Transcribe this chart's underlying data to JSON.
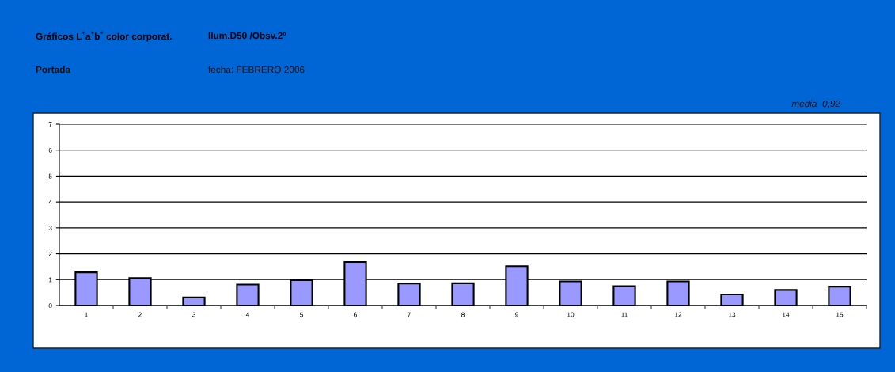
{
  "chart_data": {
    "type": "bar",
    "title": "Gráficos L$^{*}$a$^{*}$b$^{*}$ color corporat.",
    "subtitle": "Ilum.D50 /Obsv.2º",
    "annotations": [
      "Portada",
      "fecha: FEBRERO 2006",
      "media  0,92"
    ],
    "categories": [
      "1",
      "2",
      "3",
      "4",
      "5",
      "6",
      "7",
      "8",
      "9",
      "10",
      "11",
      "12",
      "13",
      "14",
      "15"
    ],
    "values": [
      1.28,
      1.06,
      0.31,
      0.81,
      0.98,
      1.68,
      0.85,
      0.86,
      1.52,
      0.93,
      0.75,
      0.93,
      0.43,
      0.6,
      0.73
    ],
    "color": "#9999ff",
    "ylim": [
      0,
      7
    ],
    "yticks": [
      0,
      1,
      2,
      3,
      4,
      5,
      6,
      7
    ],
    "grid": "y"
  }
}
